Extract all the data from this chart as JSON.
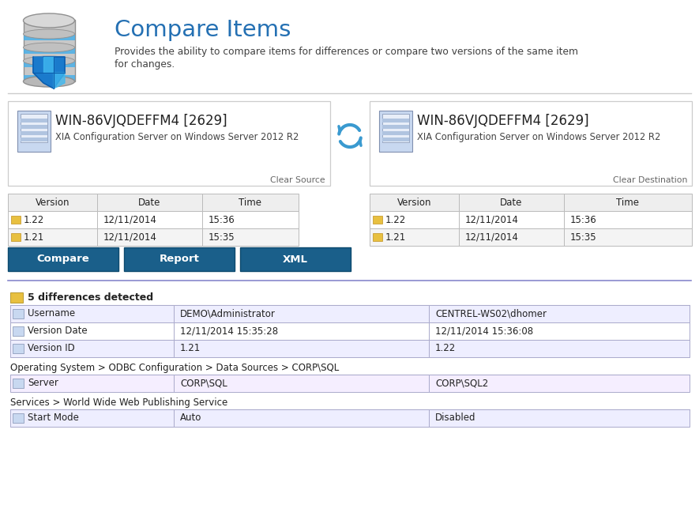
{
  "bg_color": "#ffffff",
  "title": "Compare Items",
  "title_color": "#2470b3",
  "subtitle_line1": "Provides the ability to compare items for differences or compare two versions of the same item",
  "subtitle_line2": "for changes.",
  "subtitle_color": "#404040",
  "source_box": {
    "name": "WIN-86VJQDEFFM4 [2629]",
    "sub": "XIA Configuration Server on Windows Server 2012 R2",
    "clear": "Clear Source"
  },
  "dest_box": {
    "name": "WIN-86VJQDEFFM4 [2629]",
    "sub": "XIA Configuration Server on Windows Server 2012 R2",
    "clear": "Clear Destination"
  },
  "table_headers": [
    "Version",
    "Date",
    "Time"
  ],
  "table_rows": [
    [
      "1.22",
      "12/11/2014",
      "15:36"
    ],
    [
      "1.21",
      "12/11/2014",
      "15:35"
    ]
  ],
  "buttons": [
    "Compare",
    "Report",
    "XML"
  ],
  "button_color": "#1a5f8a",
  "button_text_color": "#ffffff",
  "diff_section_label": "5 differences detected",
  "diff_rows": [
    {
      "label": "Username",
      "val1": "DEMO\\Administrator",
      "val2": "CENTREL-WS02\\dhomer",
      "bg": "#eeeeff"
    },
    {
      "label": "Version Date",
      "val1": "12/11/2014 15:35:28",
      "val2": "12/11/2014 15:36:08",
      "bg": "#ffffff"
    },
    {
      "label": "Version ID",
      "val1": "1.21",
      "val2": "1.22",
      "bg": "#eeeeff"
    }
  ],
  "section_label1": "Operating System > ODBC Configuration > Data Sources > CORP\\SQL",
  "section_rows1": [
    {
      "label": "Server",
      "val1": "CORP\\SQL",
      "val2": "CORP\\SQL2",
      "bg": "#f5eeff"
    }
  ],
  "section_label2": "Services > World Wide Web Publishing Service",
  "section_rows2": [
    {
      "label": "Start Mode",
      "val1": "Auto",
      "val2": "Disabled",
      "bg": "#eeeeff"
    }
  ],
  "table_header_bg": "#eeeeee",
  "table_border": "#bbbbbb",
  "diff_border": "#aaaacc",
  "box_border": "#cccccc",
  "header_sep": "#cccccc",
  "section_sep": "#8888cc"
}
